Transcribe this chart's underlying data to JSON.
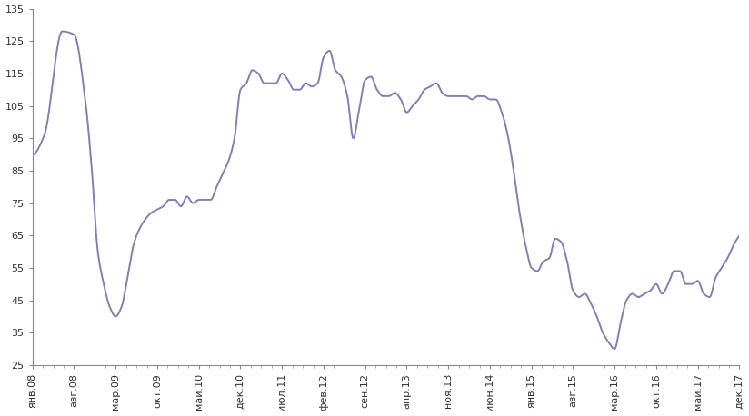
{
  "line_color": "#8080b8",
  "line_width": 1.4,
  "background_color": "#ffffff",
  "ylim": [
    25,
    135
  ],
  "yticks": [
    25,
    35,
    45,
    55,
    65,
    75,
    85,
    95,
    105,
    115,
    125,
    135
  ],
  "x_labels": [
    "янв.08",
    "авг.08",
    "мар.09",
    "окт.09",
    "май.10",
    "дек.10",
    "июл.11",
    "фев.12",
    "сен.12",
    "апр.13",
    "ноя.13",
    "июн.14",
    "янв.15",
    "авг.15",
    "мар.16",
    "окт.16",
    "май.17",
    "дек.17"
  ],
  "key_points": [
    [
      0,
      90
    ],
    [
      2,
      96
    ],
    [
      5,
      128
    ],
    [
      7,
      127
    ],
    [
      9,
      105
    ],
    [
      10,
      85
    ],
    [
      11,
      60
    ],
    [
      12,
      50
    ],
    [
      13,
      43
    ],
    [
      14,
      40
    ],
    [
      15,
      43
    ],
    [
      16,
      52
    ],
    [
      17,
      62
    ],
    [
      18,
      67
    ],
    [
      19,
      70
    ],
    [
      20,
      72
    ],
    [
      21,
      73
    ],
    [
      22,
      74
    ],
    [
      23,
      76
    ],
    [
      24,
      76
    ],
    [
      25,
      74
    ],
    [
      26,
      77
    ],
    [
      27,
      75
    ],
    [
      28,
      76
    ],
    [
      29,
      76
    ],
    [
      30,
      76
    ],
    [
      31,
      80
    ],
    [
      32,
      84
    ],
    [
      33,
      88
    ],
    [
      34,
      95
    ],
    [
      35,
      110
    ],
    [
      36,
      112
    ],
    [
      37,
      116
    ],
    [
      38,
      115
    ],
    [
      39,
      112
    ],
    [
      40,
      112
    ],
    [
      41,
      112
    ],
    [
      42,
      115
    ],
    [
      43,
      113
    ],
    [
      44,
      110
    ],
    [
      45,
      110
    ],
    [
      46,
      112
    ],
    [
      47,
      111
    ],
    [
      48,
      112
    ],
    [
      49,
      120
    ],
    [
      50,
      122
    ],
    [
      51,
      116
    ],
    [
      52,
      114
    ],
    [
      53,
      108
    ],
    [
      54,
      95
    ],
    [
      55,
      104
    ],
    [
      56,
      113
    ],
    [
      57,
      114
    ],
    [
      58,
      110
    ],
    [
      59,
      108
    ],
    [
      60,
      108
    ],
    [
      61,
      109
    ],
    [
      62,
      107
    ],
    [
      63,
      103
    ],
    [
      64,
      105
    ],
    [
      65,
      107
    ],
    [
      66,
      110
    ],
    [
      67,
      111
    ],
    [
      68,
      112
    ],
    [
      69,
      109
    ],
    [
      70,
      108
    ],
    [
      71,
      108
    ],
    [
      72,
      108
    ],
    [
      73,
      108
    ],
    [
      74,
      107
    ],
    [
      75,
      108
    ],
    [
      76,
      108
    ],
    [
      77,
      107
    ],
    [
      78,
      107
    ],
    [
      79,
      103
    ],
    [
      80,
      96
    ],
    [
      81,
      85
    ],
    [
      82,
      72
    ],
    [
      83,
      62
    ],
    [
      84,
      55
    ],
    [
      85,
      54
    ],
    [
      86,
      57
    ],
    [
      87,
      58
    ],
    [
      88,
      64
    ],
    [
      89,
      63
    ],
    [
      90,
      57
    ],
    [
      91,
      48
    ],
    [
      92,
      46
    ],
    [
      93,
      47
    ],
    [
      94,
      44
    ],
    [
      95,
      40
    ],
    [
      96,
      35
    ],
    [
      97,
      32
    ],
    [
      98,
      30
    ],
    [
      99,
      38
    ],
    [
      100,
      45
    ],
    [
      101,
      47
    ],
    [
      102,
      46
    ],
    [
      103,
      47
    ],
    [
      104,
      48
    ],
    [
      105,
      50
    ],
    [
      106,
      47
    ],
    [
      107,
      50
    ],
    [
      108,
      54
    ],
    [
      109,
      54
    ],
    [
      110,
      50
    ],
    [
      111,
      50
    ],
    [
      112,
      51
    ],
    [
      113,
      47
    ],
    [
      114,
      46
    ],
    [
      115,
      52
    ],
    [
      116,
      55
    ],
    [
      117,
      58
    ],
    [
      118,
      62
    ],
    [
      119,
      65
    ]
  ]
}
